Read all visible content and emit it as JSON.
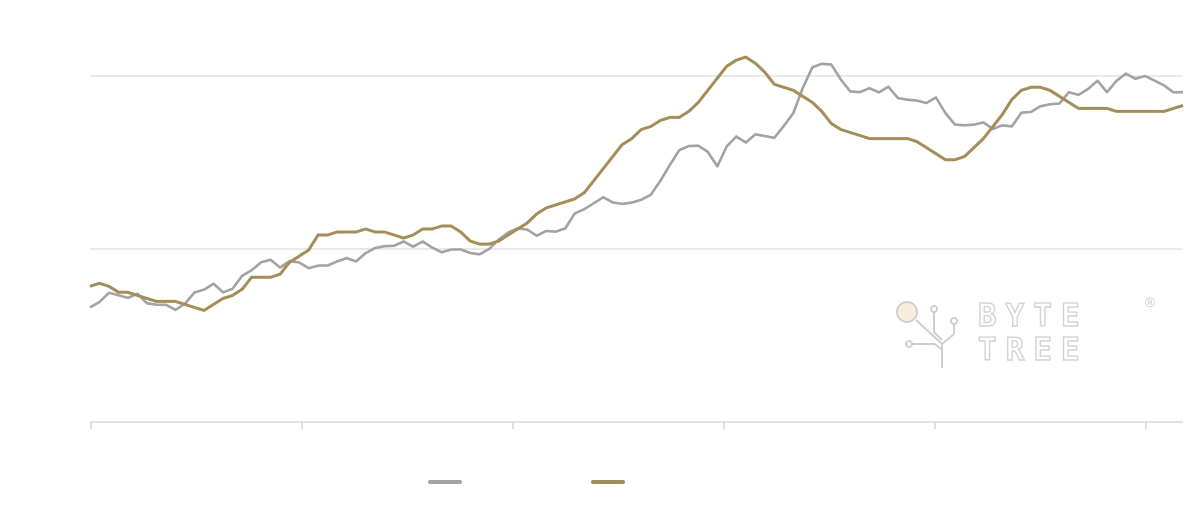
{
  "chart_data": {
    "type": "line",
    "title": "",
    "xlabel": "",
    "ylabel": "",
    "grid": true,
    "legend": "bottom-center",
    "y_gridlines": 3,
    "series": [
      {
        "color": "#a3a3a3",
        "values": [
          38,
          40,
          42,
          42,
          41,
          42,
          40,
          39,
          39,
          38,
          39,
          43,
          44,
          45,
          43,
          44,
          48,
          51,
          53,
          54,
          52,
          53,
          53,
          51,
          51,
          52,
          53,
          54,
          54,
          56,
          58,
          59,
          58,
          60,
          58,
          59,
          58,
          56,
          57,
          58,
          56,
          56,
          58,
          60,
          63,
          64,
          63,
          62,
          63,
          63,
          65,
          69,
          71,
          73,
          74,
          73,
          72,
          72,
          74,
          75,
          80,
          86,
          90,
          92,
          92,
          89,
          85,
          91,
          94,
          93,
          95,
          95,
          95,
          98,
          103,
          111,
          117,
          119,
          118,
          113,
          110,
          109,
          111,
          110,
          111,
          108,
          107,
          106,
          106,
          107,
          102,
          99,
          98,
          99,
          100,
          97,
          99,
          98,
          102,
          103,
          104,
          105,
          106,
          109,
          109,
          111,
          113,
          110,
          113,
          115,
          114,
          114,
          113,
          112,
          109,
          110
        ]
      },
      {
        "color": "#a38e58",
        "values": [
          45,
          46,
          45,
          43,
          43,
          42,
          41,
          40,
          40,
          40,
          39,
          38,
          37,
          39,
          41,
          42,
          44,
          48,
          48,
          48,
          49,
          53,
          55,
          57,
          62,
          62,
          63,
          63,
          63,
          64,
          63,
          63,
          62,
          61,
          62,
          64,
          64,
          65,
          65,
          63,
          60,
          59,
          59,
          60,
          62,
          64,
          66,
          69,
          71,
          72,
          73,
          74,
          76,
          80,
          84,
          88,
          92,
          94,
          97,
          98,
          100,
          101,
          101,
          103,
          106,
          110,
          114,
          118,
          120,
          121,
          119,
          116,
          112,
          111,
          110,
          108,
          106,
          103,
          99,
          97,
          96,
          95,
          94,
          94,
          94,
          94,
          94,
          93,
          91,
          89,
          87,
          87,
          88,
          91,
          94,
          98,
          102,
          107,
          110,
          111,
          111,
          110,
          108,
          106,
          104,
          104,
          104,
          104,
          103,
          103,
          103,
          103,
          103,
          103,
          104,
          105
        ]
      }
    ]
  }
}
